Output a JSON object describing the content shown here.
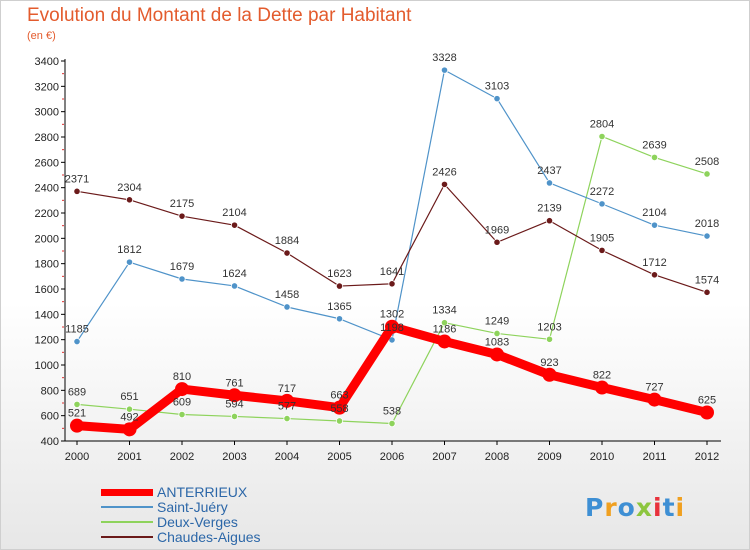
{
  "title": "Evolution du Montant de la Dette par Habitant",
  "subtitle": "(en €)",
  "brand": {
    "letters": [
      "P",
      "r",
      "o",
      "x",
      "i",
      "t",
      "i"
    ]
  },
  "chart_data": {
    "type": "line",
    "title": "Evolution du Montant de la Dette par Habitant",
    "ylabel": "(en €)",
    "x": [
      "2000",
      "2001",
      "2002",
      "2003",
      "2004",
      "2005",
      "2006",
      "2007",
      "2008",
      "2009",
      "2010",
      "2011",
      "2012"
    ],
    "ylim": [
      400,
      3400
    ],
    "yticks": [
      "400",
      "600",
      "800",
      "1000",
      "1200",
      "1400",
      "1600",
      "1800",
      "2000",
      "2200",
      "2400",
      "2600",
      "2800",
      "3000",
      "3200",
      "3400"
    ],
    "grid": false,
    "legend_position": "bottom-left",
    "series": [
      {
        "name": "ANTERRIEUX",
        "color": "#ff0000",
        "values": [
          521,
          492,
          810,
          761,
          717,
          663,
          1302,
          1186,
          1083,
          923,
          822,
          727,
          625
        ],
        "labels": [
          "521",
          "492",
          "810",
          "761",
          "717",
          "663",
          "1302",
          "1186",
          "1083",
          "923",
          "822",
          "727",
          "625"
        ]
      },
      {
        "name": "Saint-Juéry",
        "color": "#4f93c9",
        "values": [
          1185,
          1812,
          1679,
          1624,
          1458,
          1365,
          1198,
          3328,
          3103,
          2437,
          2272,
          2104,
          2018
        ],
        "labels": [
          "1185",
          "1812",
          "1679",
          "1624",
          "1458",
          "1365",
          "1198",
          "3328",
          "3103",
          "2437",
          "2272",
          "2104",
          "2018"
        ]
      },
      {
        "name": "Deux-Verges",
        "color": "#8ed35c",
        "values": [
          689,
          651,
          609,
          594,
          577,
          558,
          538,
          1334,
          1249,
          1203,
          2804,
          2639,
          2508
        ],
        "labels": [
          "689",
          "651",
          "609",
          "594",
          "577",
          "558",
          "538",
          "1334",
          "1249",
          "1203",
          "2804",
          "2639",
          "2508"
        ]
      },
      {
        "name": "Chaudes-Aigues",
        "color": "#6b1a1a",
        "values": [
          2371,
          2304,
          2175,
          2104,
          1884,
          1623,
          1641,
          2426,
          1969,
          2139,
          1905,
          1712,
          1574
        ],
        "labels": [
          "2371",
          "2304",
          "2175",
          "2104",
          "1884",
          "1623",
          "1641",
          "2426",
          "1969",
          "2139",
          "1905",
          "1712",
          "1574"
        ]
      }
    ]
  }
}
